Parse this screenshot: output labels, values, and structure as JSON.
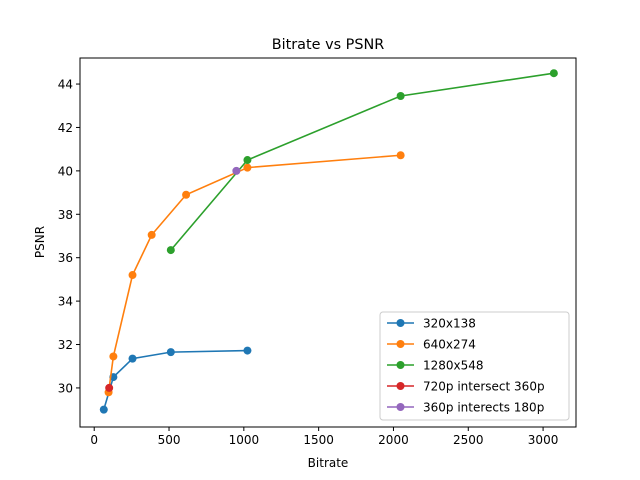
{
  "chart_data": {
    "type": "line",
    "title": "Bitrate vs PSNR",
    "xlabel": "Bitrate",
    "ylabel": "PSNR",
    "xlim": [
      -95,
      3220
    ],
    "ylim": [
      28.2,
      45.2
    ],
    "xticks": [
      0,
      500,
      1000,
      1500,
      2000,
      2500,
      3000
    ],
    "yticks": [
      30,
      32,
      34,
      36,
      38,
      40,
      42,
      44
    ],
    "grid": false,
    "legend_position": "lower-right",
    "series": [
      {
        "name": "320x138",
        "color": "#1f77b4",
        "x": [
          64,
          128,
          256,
          512,
          1024
        ],
        "y": [
          29.0,
          30.5,
          31.35,
          31.65,
          31.72
        ]
      },
      {
        "name": "640x274",
        "color": "#ff7f0e",
        "x": [
          96,
          128,
          256,
          384,
          614,
          1024,
          2048
        ],
        "y": [
          29.8,
          31.45,
          35.2,
          37.05,
          38.9,
          40.15,
          40.72
        ]
      },
      {
        "name": "1280x548",
        "color": "#2ca02c",
        "x": [
          512,
          1024,
          2048,
          3072
        ],
        "y": [
          36.35,
          40.5,
          43.45,
          44.5
        ]
      },
      {
        "name": "720p intersect 360p",
        "color": "#d62728",
        "x": [
          100
        ],
        "y": [
          30.0
        ]
      },
      {
        "name": "360p interects 180p",
        "color": "#9467bd",
        "x": [
          950
        ],
        "y": [
          40.0
        ]
      }
    ]
  }
}
